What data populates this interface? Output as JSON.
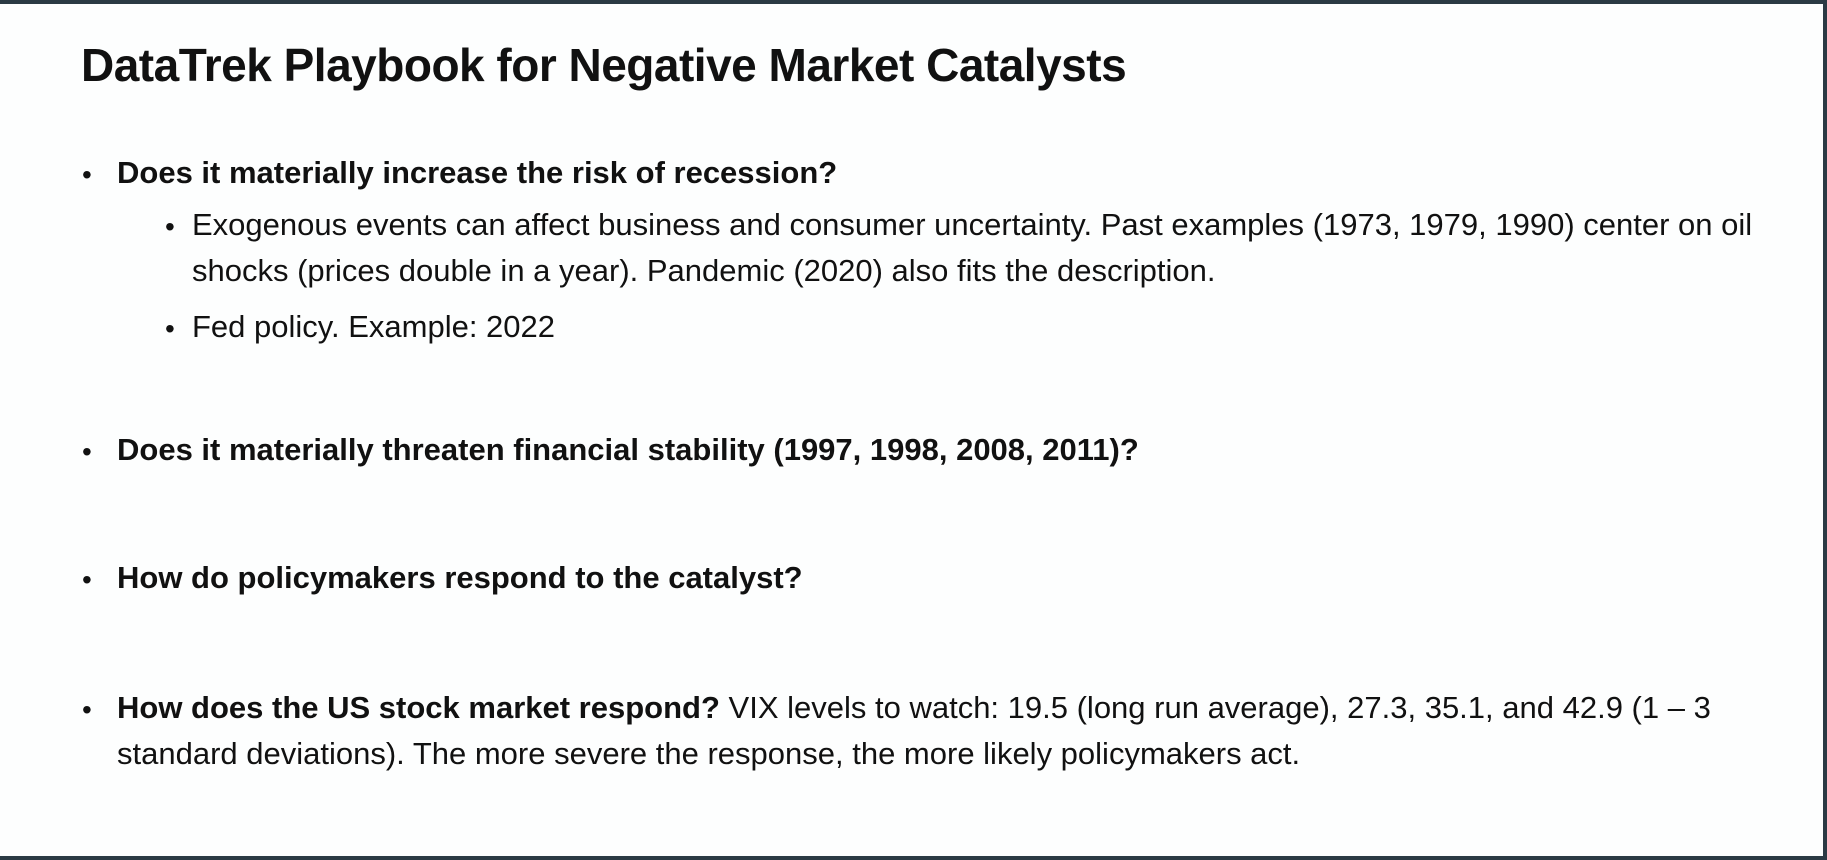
{
  "title": "DataTrek Playbook for Negative Market Catalysts",
  "items": [
    {
      "bold": "Does it materially increase the risk of recession?",
      "sub": [
        "Exogenous events can affect business and consumer uncertainty.  Past examples (1973, 1979, 1990) center on oil shocks (prices double in a year). Pandemic (2020) also fits the description.",
        "Fed policy.  Example: 2022"
      ]
    },
    {
      "bold": "Does it materially threaten financial stability (1997, 1998, 2008, 2011)?"
    },
    {
      "bold": "How do policymakers respond to the catalyst?"
    },
    {
      "bold": "How does the US stock market respond?",
      "text": " VIX levels to watch: 19.5 (long run average), 27.3, 35.1, and 42.9 (1 – 3 standard deviations).  The more severe the response, the more likely policymakers act."
    }
  ],
  "bullet_glyph": "•"
}
